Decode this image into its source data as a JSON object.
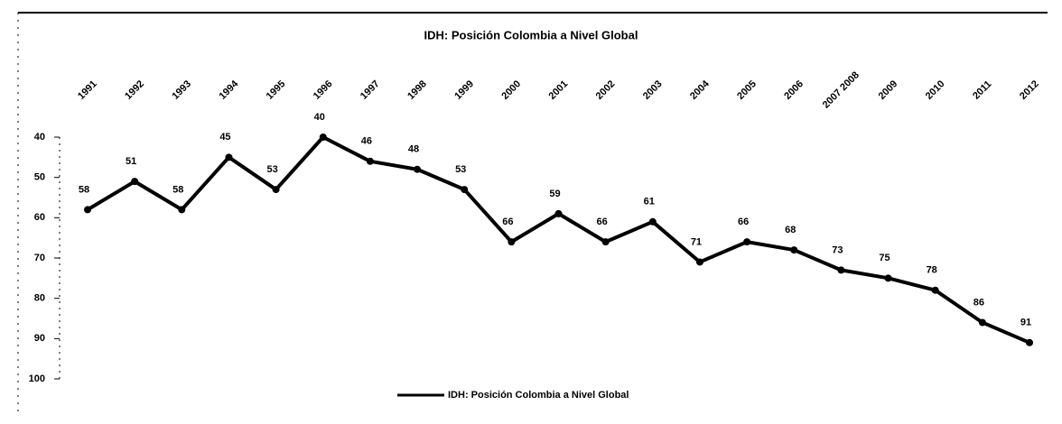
{
  "chart_data": {
    "type": "line",
    "title": "IDH: Posición Colombia a Nivel Global",
    "categories": [
      "1991",
      "1992",
      "1993",
      "1994",
      "1995",
      "1996",
      "1997",
      "1998",
      "1999",
      "2000",
      "2001",
      "2002",
      "2003",
      "2004",
      "2005",
      "2006",
      "2007 2008",
      "2009",
      "2010",
      "2011",
      "2012"
    ],
    "series": [
      {
        "name": "IDH: Posición Colombia a Nivel Global",
        "color": "#000000",
        "values": [
          58,
          51,
          58,
          45,
          53,
          40,
          46,
          48,
          53,
          66,
          59,
          66,
          61,
          71,
          66,
          68,
          73,
          75,
          78,
          86,
          91
        ]
      }
    ],
    "ylim": [
      40,
      100
    ],
    "yticks": [
      40,
      50,
      60,
      70,
      80,
      90,
      100
    ],
    "inverted": true
  }
}
